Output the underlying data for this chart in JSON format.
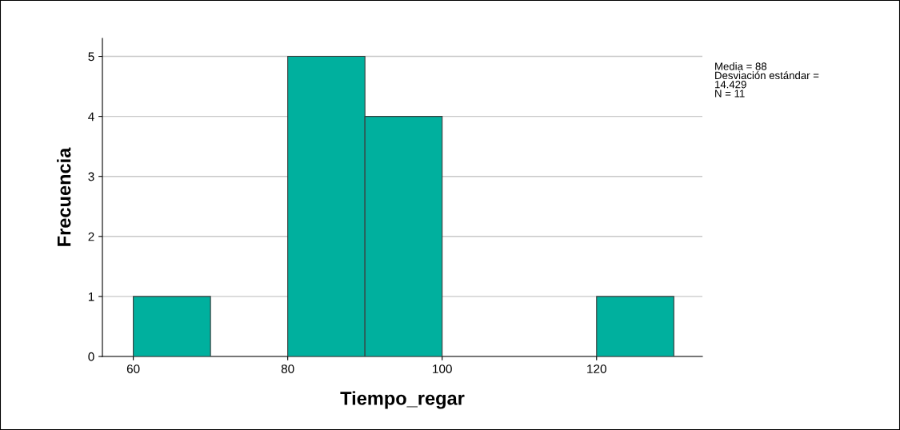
{
  "chart_data": {
    "type": "histogram",
    "xlabel": "Tiempo_regar",
    "ylabel": "Frecuencia",
    "bins": [
      60,
      70,
      80,
      90,
      100,
      110,
      120,
      130
    ],
    "values": [
      1,
      0,
      5,
      4,
      0,
      0,
      1
    ],
    "color": "#00b09e",
    "xlim": [
      56,
      133.7
    ],
    "xticks": [
      60,
      80,
      100,
      120
    ],
    "ylim": [
      0,
      5.3
    ],
    "yticks": [
      0,
      1,
      2,
      3,
      4,
      5
    ],
    "grid": "y",
    "annotations": [
      "Media = 88\nDesviación estándar =\n14.429\nN = 11"
    ]
  }
}
